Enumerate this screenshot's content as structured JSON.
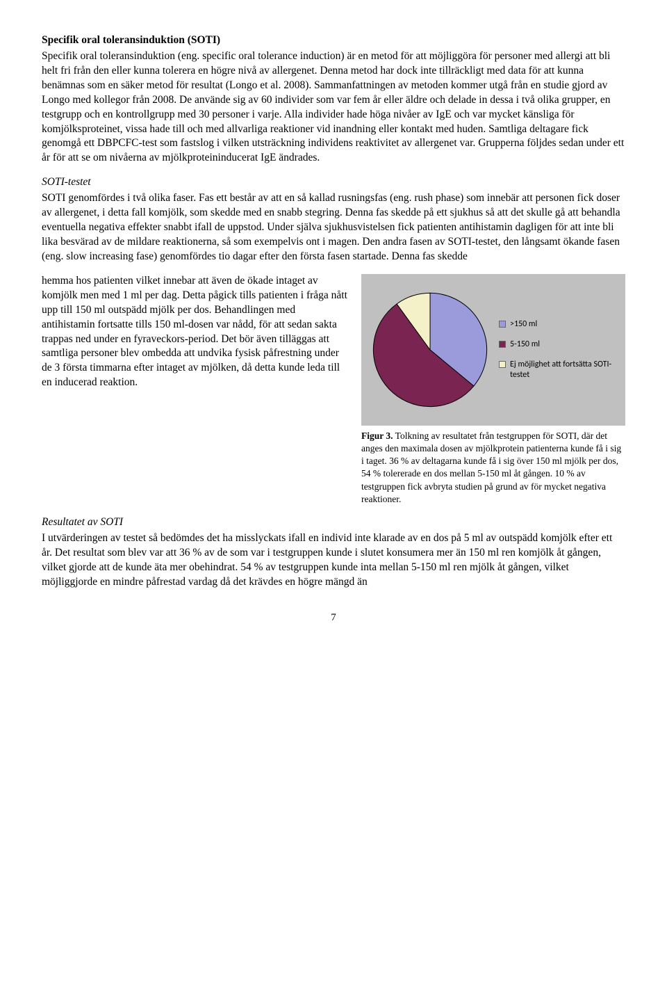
{
  "section1": {
    "title": "Specifik oral toleransinduktion (SOTI)",
    "body": "Specifik oral toleransinduktion (eng. specific oral tolerance induction) är en metod för att möjliggöra för personer med allergi att bli helt fri från den eller kunna tolerera en högre nivå av allergenet. Denna metod har dock inte tillräckligt med data för att kunna benämnas som en säker metod för resultat (Longo et al. 2008). Sammanfattningen av metoden kommer utgå från en studie gjord av Longo med kollegor från 2008. De använde sig av 60 individer som var fem år eller äldre och delade in dessa i två olika grupper, en testgrupp och en kontrollgrupp med 30 personer i varje. Alla individer hade höga nivåer av IgE och var mycket känsliga för komjölksproteinet, vissa hade till och med allvarliga reaktioner vid inandning eller kontakt med huden. Samtliga deltagare fick genomgå ett DBPCFC-test som fastslog i vilken utsträckning individens reaktivitet av allergenet var. Grupperna följdes sedan under ett år för att se om nivåerna av mjölkproteininducerat IgE ändrades."
  },
  "section2": {
    "title": "SOTI-testet",
    "body_top": "SOTI genomfördes i två olika faser. Fas ett består av att en så kallad rusningsfas (eng. rush phase) som innebär att personen fick doser av allergenet, i detta fall komjölk, som skedde med en snabb stegring. Denna fas skedde på ett sjukhus så att det skulle gå att behandla eventuella negativa effekter snabbt ifall de uppstod. Under själva sjukhusvistelsen fick patienten antihistamin dagligen för att inte bli lika besvärad av de mildare reaktionerna, så som exempelvis ont i magen. Den andra fasen av SOTI-testet, den långsamt ökande fasen (eng. slow increasing fase) genomfördes tio dagar efter den första fasen startade. Denna fas skedde",
    "body_left": "hemma hos patienten vilket innebar att även de ökade intaget av komjölk men med 1 ml per dag. Detta pågick tills patienten i fråga nått upp till 150 ml outspädd mjölk per dos. Behandlingen med antihistamin fortsatte tills 150 ml-dosen var nådd, för att sedan sakta trappas ned under en fyraveckors-period. Det bör även tilläggas att samtliga personer blev ombedda att undvika fysisk påfrestning under de 3 första timmarna efter intaget av mjölken, då detta kunde leda till en inducerad reaktion."
  },
  "chart": {
    "type": "pie",
    "background_color": "#c0c0c0",
    "slices": [
      {
        "label": ">150 ml",
        "value": 36,
        "color": "#9b9bdc"
      },
      {
        "label": "5-150 ml",
        "value": 54,
        "color": "#7a2452"
      },
      {
        "label": "Ej möjlighet att fortsätta SOTI-testet",
        "value": 10,
        "color": "#f4f0c8"
      }
    ],
    "stroke": "#000000"
  },
  "caption": {
    "lead": "Figur 3.",
    "text": " Tolkning av resultatet från testgruppen för SOTI, där det anges den maximala dosen av mjölkprotein patienterna kunde få i sig i taget. 36 % av deltagarna kunde få i sig över 150 ml mjölk per dos, 54 % tolererade en dos mellan 5-150 ml åt gången. 10 % av testgruppen fick avbryta studien på grund av för mycket negativa reaktioner."
  },
  "section3": {
    "title": "Resultatet av SOTI",
    "body": "I utvärderingen av testet så bedömdes det ha misslyckats ifall en individ inte klarade av en dos på 5 ml av outspädd komjölk efter ett år. Det resultat som blev var att 36 % av de som var i testgruppen kunde i slutet konsumera mer än 150 ml ren komjölk åt gången, vilket gjorde att de kunde äta mer obehindrat. 54 % av testgruppen kunde inta mellan 5-150 ml ren mjölk åt gången, vilket möjliggjorde en mindre påfrestad vardag då det krävdes en högre mängd än"
  },
  "page_number": "7"
}
